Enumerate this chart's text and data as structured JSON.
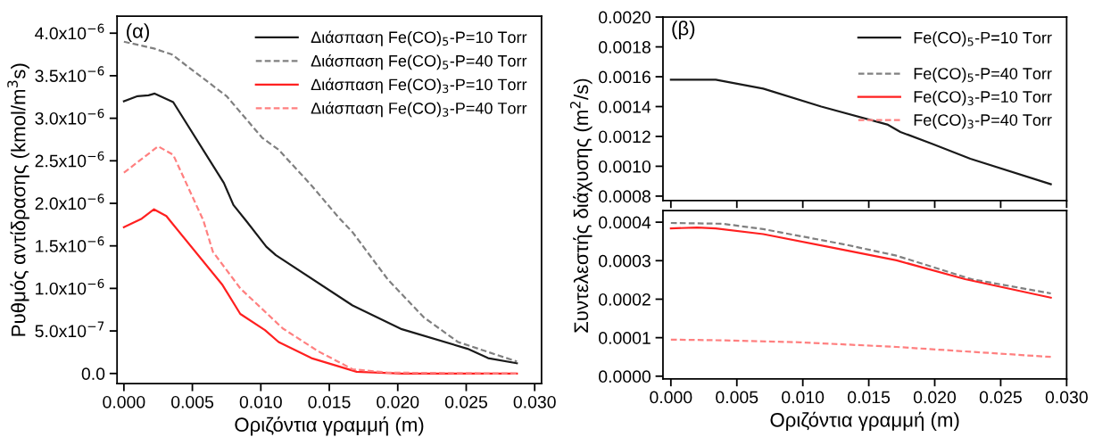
{
  "chart_data": [
    {
      "type": "line",
      "annotations": [
        "(α)"
      ],
      "xlabel": "Οριζόντια γραμμή (m)",
      "ylabel": "Ρυθμός αντίδρασης (kmol/m$^{3}$s)",
      "xlim": [
        -0.0005,
        0.0305
      ],
      "xticks": [
        {
          "value": 0,
          "label": "0.000"
        },
        {
          "value": 0.005,
          "label": "0.005"
        },
        {
          "value": 0.01,
          "label": "0.010"
        },
        {
          "value": 0.015,
          "label": "0.015"
        },
        {
          "value": 0.02,
          "label": "0.020"
        },
        {
          "value": 0.025,
          "label": "0.025"
        },
        {
          "value": 0.03,
          "label": "0.030"
        }
      ],
      "ylim": [
        -1.2e-07,
        4.2e-06
      ],
      "yticks": [
        {
          "value": 0,
          "label": "0.0"
        },
        {
          "value": 5e-07,
          "label": "5.0x10$^{−7}$"
        },
        {
          "value": 1e-06,
          "label": "1.0x10$^{−6}$"
        },
        {
          "value": 1.5e-06,
          "label": "1.5x10$^{−6}$"
        },
        {
          "value": 2e-06,
          "label": "2.0x10$^{−6}$"
        },
        {
          "value": 2.5e-06,
          "label": "2.5x10$^{−6}$"
        },
        {
          "value": 3e-06,
          "label": "3.0x10$^{−6}$"
        },
        {
          "value": 3.5e-06,
          "label": "3.5x10$^{−6}$"
        },
        {
          "value": 4e-06,
          "label": "4.0x10$^{−6}$"
        }
      ],
      "legend": "top right",
      "series": [
        {
          "name": "Διάσπαση Fe(CO)$_{5}$-P=10 Torr",
          "color": "#1a1a1a",
          "line_style": "solid",
          "x": [
            0,
            0.001,
            0.0018,
            0.00225,
            0.0036,
            0.0073,
            0.008,
            0.009,
            0.0104,
            0.0111,
            0.0167,
            0.0203,
            0.0251,
            0.0266,
            0.0287
          ],
          "values": [
            3.2e-06,
            3.26e-06,
            3.27e-06,
            3.29e-06,
            3.19e-06,
            2.24e-06,
            1.98e-06,
            1.78e-06,
            1.49e-06,
            1.39e-06,
            8e-07,
            5.2e-07,
            2.9e-07,
            1.8e-07,
            1.2e-07
          ]
        },
        {
          "name": "Διάσπαση Fe(CO)$_{5}$-P=40 Torr",
          "color": "#808080",
          "line_style": "dashed",
          "x": [
            0,
            0.0022,
            0.0035,
            0.0075,
            0.0101,
            0.0113,
            0.0137,
            0.0157,
            0.0167,
            0.0193,
            0.0219,
            0.0244,
            0.0287
          ],
          "values": [
            3.9e-06,
            3.82e-06,
            3.75e-06,
            3.26e-06,
            2.77e-06,
            2.63e-06,
            2.21e-06,
            1.83e-06,
            1.66e-06,
            1.1e-06,
            6.6e-07,
            3.7e-07,
            1.4e-07
          ]
        },
        {
          "name": "Διάσπαση Fe(CO)$_{3}$-P=10 Torr",
          "color": "#ff2020",
          "line_style": "solid",
          "x": [
            0,
            0.0013,
            0.0022,
            0.0031,
            0.0034,
            0.0072,
            0.0085,
            0.0103,
            0.0113,
            0.0137,
            0.017,
            0.0203,
            0.0287
          ],
          "values": [
            1.72e-06,
            1.82e-06,
            1.93e-06,
            1.85e-06,
            1.79e-06,
            1.04e-06,
            7e-07,
            5.1e-07,
            3.7e-07,
            1.8e-07,
            2e-08,
            0,
            0
          ]
        },
        {
          "name": "Διάσπαση Fe(CO)$_{3}$-P=40 Torr",
          "color": "#ff8080",
          "line_style": "dashed",
          "x": [
            0,
            0.0025,
            0.0036,
            0.0058,
            0.0065,
            0.0085,
            0.0116,
            0.0142,
            0.0167,
            0.0193,
            0.0287
          ],
          "values": [
            2.36e-06,
            2.67e-06,
            2.57e-06,
            1.8e-06,
            1.43e-06,
            1e-06,
            5.3e-07,
            2.6e-07,
            5e-08,
            1e-08,
            0
          ]
        }
      ]
    },
    {
      "type": "line",
      "annotations": [
        "(β)"
      ],
      "tick_labels": "y",
      "xlim": [
        -0.0006,
        0.03
      ],
      "xticks": [
        {
          "value": 0,
          "label": null
        },
        {
          "value": 0.005,
          "label": null
        },
        {
          "value": 0.01,
          "label": null
        },
        {
          "value": 0.015,
          "label": null
        },
        {
          "value": 0.02,
          "label": null
        },
        {
          "value": 0.025,
          "label": null
        },
        {
          "value": 0.03,
          "label": null
        }
      ],
      "ylim": [
        0.00077,
        0.002
      ],
      "yticks": [
        {
          "value": 0.0008,
          "label": "0.0008"
        },
        {
          "value": 0.001,
          "label": "0.0010"
        },
        {
          "value": 0.0012,
          "label": "0.0012"
        },
        {
          "value": 0.0014,
          "label": "0.0014"
        },
        {
          "value": 0.0016,
          "label": "0.0016"
        },
        {
          "value": 0.0018,
          "label": "0.0018"
        },
        {
          "value": 0.002,
          "label": "0.0020"
        }
      ],
      "legend": "top right",
      "series": [
        {
          "name": "Fe(CO)$_{5}$-P=10 Torr",
          "color": "#1a1a1a",
          "line_style": "solid",
          "x": [
            0,
            0.0034,
            0.007,
            0.0114,
            0.0164,
            0.0174,
            0.0198,
            0.0227,
            0.0288
          ],
          "values": [
            0.00158,
            0.00158,
            0.00152,
            0.0014,
            0.00128,
            0.00123,
            0.00115,
            0.00105,
            0.00088
          ]
        }
      ]
    },
    {
      "type": "line",
      "xlabel": "Οριζόντια γραμμή (m)",
      "ylabel": "Συντελεστής διάχυσης (m$^{2}$/s)",
      "legend": "top right",
      "xlim": [
        -0.0006,
        0.03
      ],
      "xticks": [
        {
          "value": 0,
          "label": "0.000"
        },
        {
          "value": 0.005,
          "label": "0.005"
        },
        {
          "value": 0.01,
          "label": "0.010"
        },
        {
          "value": 0.015,
          "label": "0.015"
        },
        {
          "value": 0.02,
          "label": "0.020"
        },
        {
          "value": 0.025,
          "label": "0.025"
        },
        {
          "value": 0.03,
          "label": "0.030"
        }
      ],
      "ylim": [
        -7e-06,
        0.00043
      ],
      "yticks": [
        {
          "value": 0,
          "label": "0.0000"
        },
        {
          "value": 0.0001,
          "label": "0.0001"
        },
        {
          "value": 0.0002,
          "label": "0.0002"
        },
        {
          "value": 0.0003,
          "label": "0.0003"
        },
        {
          "value": 0.0004,
          "label": "0.0004"
        }
      ],
      "series": [
        {
          "name": "Fe(CO)$_{5}$-P=40 Torr",
          "color": "#808080",
          "line_style": "dashed",
          "x": [
            0,
            0.0039,
            0.007,
            0.0132,
            0.0171,
            0.0228,
            0.0288
          ],
          "values": [
            0.000398,
            0.000396,
            0.000382,
            0.000342,
            0.000313,
            0.000252,
            0.000215
          ]
        },
        {
          "name": "Fe(CO)$_{3}$-P=10 Torr",
          "color": "#ff2020",
          "line_style": "solid",
          "x": [
            0,
            0.002,
            0.0034,
            0.007,
            0.0124,
            0.0171,
            0.0223,
            0.0288
          ],
          "values": [
            0.000384,
            0.000386,
            0.000384,
            0.000369,
            0.000333,
            0.000301,
            0.000252,
            0.000204
          ]
        },
        {
          "name": "Fe(CO)$_{3}$-P=40 Torr",
          "color": "#ff8080",
          "line_style": "dashed",
          "x": [
            0,
            0.0041,
            0.0098,
            0.0171,
            0.0288
          ],
          "values": [
            9.5e-05,
            9.3e-05,
            8.8e-05,
            7.6e-05,
            5e-05
          ]
        }
      ]
    }
  ]
}
